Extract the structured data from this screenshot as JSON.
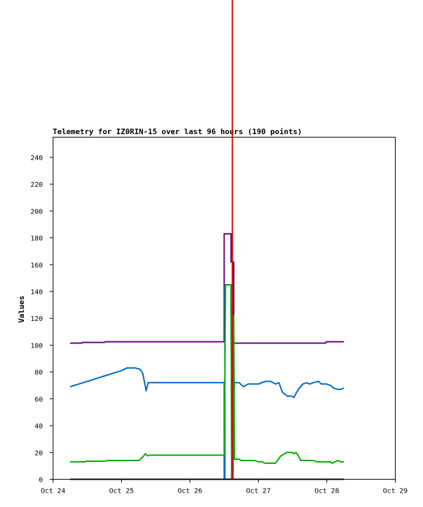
{
  "chart_data": {
    "type": "line",
    "title": "Telemetry for IZ0RIN-15 over last 96 hours (190 points)",
    "xlabel": "",
    "ylabel": "Values",
    "xlim": [
      "Oct 24",
      "Oct 29"
    ],
    "ylim": [
      0,
      255
    ],
    "x_ticks": [
      "Oct 24",
      "Oct 25",
      "Oct 26",
      "Oct 27",
      "Oct 28",
      "Oct 29"
    ],
    "y_ticks": [
      0,
      20,
      40,
      60,
      80,
      100,
      120,
      140,
      160,
      180,
      200,
      220,
      240
    ],
    "grid": false,
    "legend": "none",
    "x_unit": "days since Oct 24",
    "current_marker": {
      "x": 2.62,
      "color": "#dd0000"
    },
    "series": [
      {
        "color": "#660077",
        "points": [
          [
            0.25,
            101.5
          ],
          [
            0.42,
            101.5
          ],
          [
            0.43,
            102
          ],
          [
            0.75,
            102
          ],
          [
            0.76,
            102.5
          ],
          [
            2.5,
            102.5
          ],
          [
            2.5,
            183
          ],
          [
            2.6,
            183
          ],
          [
            2.6,
            162
          ],
          [
            2.64,
            162
          ],
          [
            2.64,
            101.5
          ],
          [
            3.0,
            101.5
          ],
          [
            3.5,
            101.5
          ],
          [
            3.98,
            101.5
          ],
          [
            3.99,
            102.5
          ],
          [
            4.25,
            102.5
          ]
        ]
      },
      {
        "color": "#0066cc",
        "points": [
          [
            0.25,
            69
          ],
          [
            0.5,
            73
          ],
          [
            0.75,
            77
          ],
          [
            1.0,
            81
          ],
          [
            1.08,
            83
          ],
          [
            1.2,
            83
          ],
          [
            1.27,
            82
          ],
          [
            1.31,
            79
          ],
          [
            1.33,
            74
          ],
          [
            1.36,
            66
          ],
          [
            1.39,
            72
          ],
          [
            1.5,
            72
          ],
          [
            2.0,
            72
          ],
          [
            2.5,
            72
          ],
          [
            2.5,
            0
          ],
          [
            2.51,
            0
          ],
          [
            2.51,
            144
          ],
          [
            2.53,
            145
          ],
          [
            2.6,
            145
          ],
          [
            2.61,
            0
          ],
          [
            2.63,
            0
          ],
          [
            2.64,
            60
          ],
          [
            2.65,
            72
          ],
          [
            2.72,
            72
          ],
          [
            2.78,
            69
          ],
          [
            2.85,
            71
          ],
          [
            3.0,
            71
          ],
          [
            3.05,
            72
          ],
          [
            3.1,
            73
          ],
          [
            3.18,
            73
          ],
          [
            3.25,
            71
          ],
          [
            3.3,
            72
          ],
          [
            3.35,
            65
          ],
          [
            3.42,
            62
          ],
          [
            3.48,
            62
          ],
          [
            3.52,
            61
          ],
          [
            3.56,
            65
          ],
          [
            3.6,
            68
          ],
          [
            3.65,
            71
          ],
          [
            3.7,
            72
          ],
          [
            3.75,
            71
          ],
          [
            3.8,
            72
          ],
          [
            3.88,
            73
          ],
          [
            3.92,
            71
          ],
          [
            4.0,
            71
          ],
          [
            4.05,
            70
          ],
          [
            4.1,
            68
          ],
          [
            4.16,
            67
          ],
          [
            4.2,
            67
          ],
          [
            4.25,
            68
          ]
        ]
      },
      {
        "color": "#00aa00",
        "points": [
          [
            0.25,
            13
          ],
          [
            0.45,
            13
          ],
          [
            0.5,
            13.5
          ],
          [
            0.75,
            13.5
          ],
          [
            0.8,
            14
          ],
          [
            1.25,
            14
          ],
          [
            1.3,
            16
          ],
          [
            1.35,
            19
          ],
          [
            1.38,
            17.5
          ],
          [
            1.42,
            18
          ],
          [
            1.5,
            18
          ],
          [
            2.0,
            18
          ],
          [
            2.5,
            18
          ],
          [
            2.51,
            80
          ],
          [
            2.52,
            145
          ],
          [
            2.6,
            145
          ],
          [
            2.61,
            18
          ],
          [
            2.63,
            0
          ],
          [
            2.64,
            122
          ],
          [
            2.65,
            15
          ],
          [
            2.72,
            15
          ],
          [
            2.75,
            14
          ],
          [
            2.95,
            14
          ],
          [
            3.0,
            13
          ],
          [
            3.05,
            13
          ],
          [
            3.1,
            12
          ],
          [
            3.25,
            12
          ],
          [
            3.28,
            14
          ],
          [
            3.32,
            17
          ],
          [
            3.38,
            19
          ],
          [
            3.42,
            20
          ],
          [
            3.5,
            20
          ],
          [
            3.52,
            19
          ],
          [
            3.55,
            20
          ],
          [
            3.58,
            18
          ],
          [
            3.62,
            14
          ],
          [
            3.8,
            14
          ],
          [
            3.85,
            13
          ],
          [
            4.05,
            13
          ],
          [
            4.08,
            12
          ],
          [
            4.12,
            13
          ],
          [
            4.16,
            14
          ],
          [
            4.2,
            13
          ],
          [
            4.25,
            13
          ]
        ]
      },
      {
        "color": "#000000",
        "points": [
          [
            0.25,
            0
          ],
          [
            2.5,
            0
          ],
          [
            2.62,
            0
          ],
          [
            4.25,
            0
          ]
        ]
      }
    ]
  }
}
